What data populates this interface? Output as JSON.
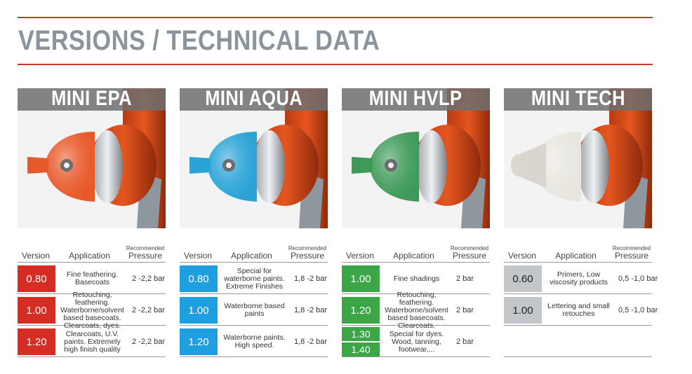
{
  "page": {
    "title": "VERSIONS / TECHNICAL DATA"
  },
  "headers": {
    "version": "Version",
    "application": "Application",
    "recommended": "Recommended",
    "pressure": "Pressure"
  },
  "products": [
    {
      "name": "MINI EPA",
      "cap_color": "#e8592a",
      "accent_color": "#d52d24",
      "rows": [
        {
          "versions": [
            "0.80"
          ],
          "application": "Fine feathering. Basecoats",
          "pressure": "2 -2,2 bar"
        },
        {
          "versions": [
            "1.00"
          ],
          "application": "Retouching, feathering. Waterborne/solvent based basecoats. Clearcoats, dyes.",
          "pressure": "2 -2,2 bar"
        },
        {
          "versions": [
            "1.20"
          ],
          "application": "Clearcoats, U.V. paints. Extremely high finish quality",
          "pressure": "2 -2,2 bar"
        }
      ]
    },
    {
      "name": "MINI AQUA",
      "cap_color": "#2aa3d6",
      "accent_color": "#1e9fe0",
      "rows": [
        {
          "versions": [
            "0.80"
          ],
          "application": "Special for waterborne paints. Extreme Finishes",
          "pressure": "1,8 -2 bar"
        },
        {
          "versions": [
            "1.00"
          ],
          "application": "Waterborne based paints",
          "pressure": "1,8 -2 bar"
        },
        {
          "versions": [
            "1.20"
          ],
          "application": "Waterborne paints. High speed.",
          "pressure": "1,8 -2 bar"
        }
      ]
    },
    {
      "name": "MINI HVLP",
      "cap_color": "#3f9a5a",
      "accent_color": "#3aa646",
      "rows": [
        {
          "versions": [
            "1.00"
          ],
          "application": "Fine shadings",
          "pressure": "2  bar"
        },
        {
          "versions": [
            "1.20"
          ],
          "application": "Retouching, feathering. Waterborne/solvent based basecoats. Clearcoats.",
          "pressure": "2 bar"
        },
        {
          "versions": [
            "1.30",
            "1.40"
          ],
          "application": "Special for dyes. Wood, tanning, footwear,...",
          "pressure": "2 bar"
        }
      ]
    },
    {
      "name": "MINI TECH",
      "cap_color": "#c8c8c4",
      "accent_color": "#c4c7ca",
      "version_text_color": "#222222",
      "rows": [
        {
          "versions": [
            "0.60"
          ],
          "application": "Primers, Low viscosity products",
          "pressure": "0,5 -1,0 bar"
        },
        {
          "versions": [
            "1.00"
          ],
          "application": "Lettering and small retouches",
          "pressure": "0,5 -1,0 bar"
        }
      ]
    }
  ]
}
